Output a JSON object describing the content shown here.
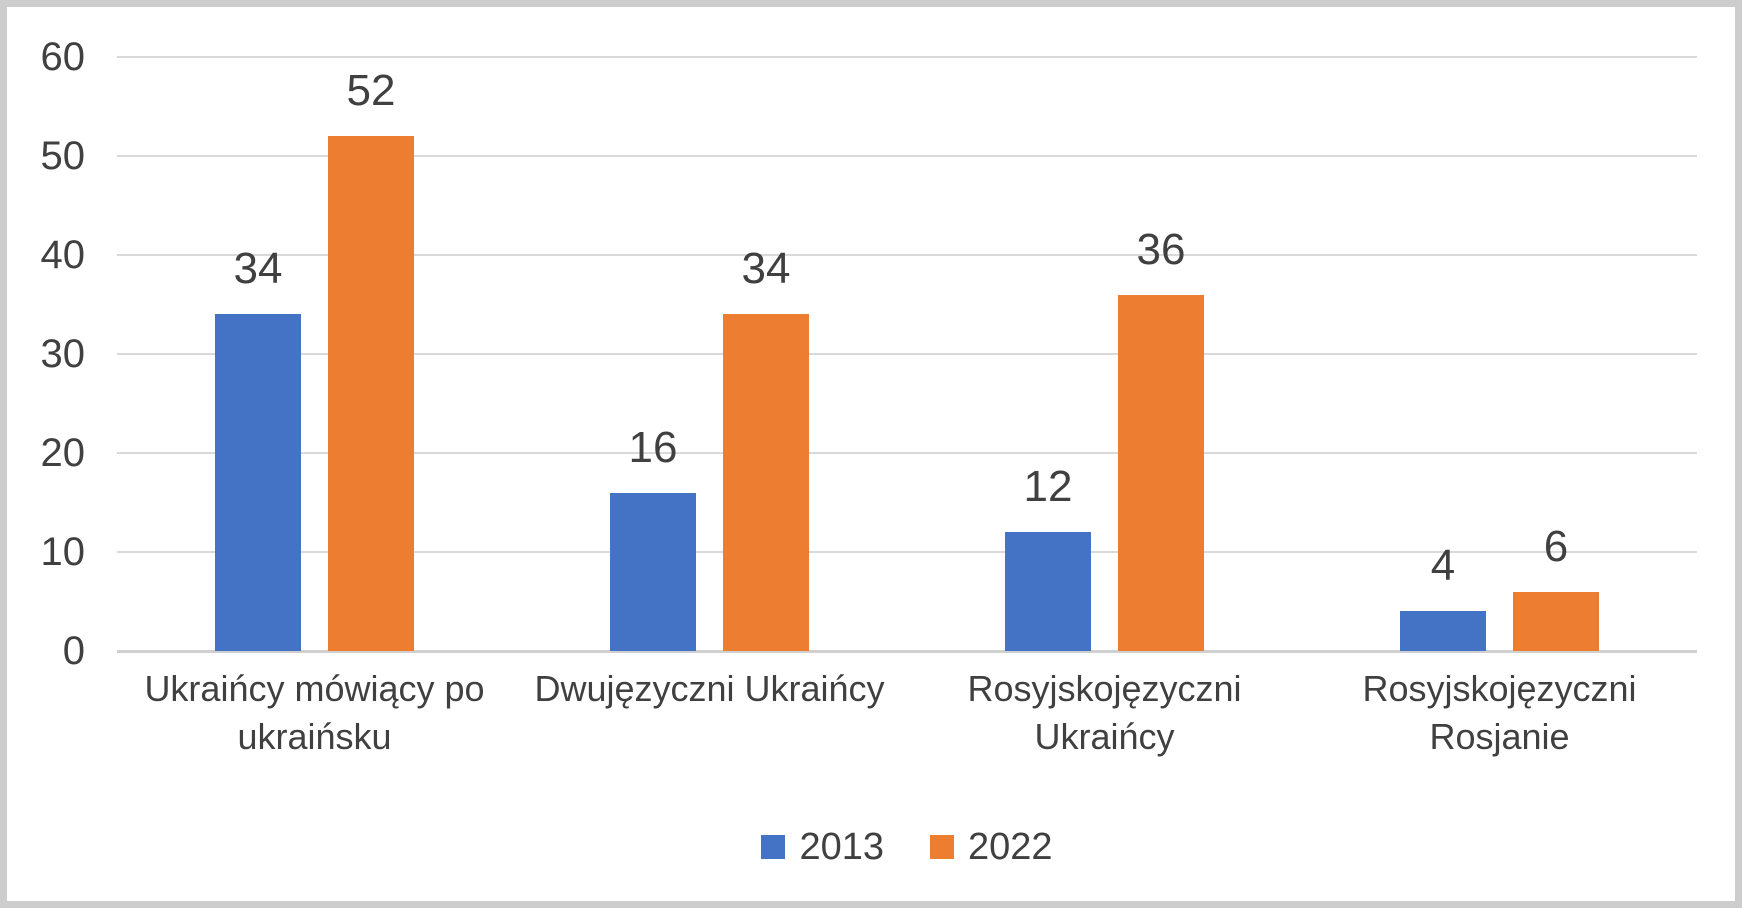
{
  "chart_data": {
    "type": "bar",
    "categories": [
      "Ukraińcy mówiący po ukraińsku",
      "Dwujęzyczni Ukraińcy",
      "Rosyjskojęzyczni Ukraińcy",
      "Rosyjskojęzyczni Rosjanie"
    ],
    "series": [
      {
        "name": "2013",
        "color": "#4472C4",
        "values": [
          34,
          16,
          12,
          4
        ]
      },
      {
        "name": "2022",
        "color": "#ED7D31",
        "values": [
          52,
          34,
          36,
          6
        ]
      }
    ],
    "title": "",
    "xlabel": "",
    "ylabel": "",
    "ylim": [
      0,
      60
    ],
    "yticks": [
      0,
      10,
      20,
      30,
      40,
      50,
      60
    ],
    "grid": true,
    "legend_position": "bottom",
    "data_labels_shown": true
  },
  "colors": {
    "text": "#404040",
    "gridline": "#D9D9D9",
    "axis_line": "#D0D0D0",
    "background": "#FFFFFF",
    "frame_border": "#CDCDCD"
  }
}
